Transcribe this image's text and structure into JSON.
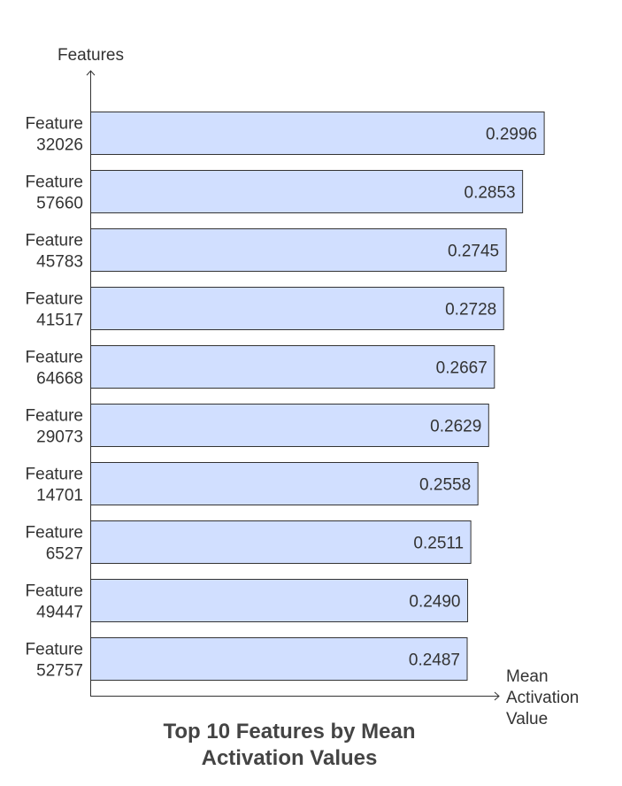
{
  "chart_data": {
    "type": "bar",
    "orientation": "horizontal",
    "title_lines": [
      "Top 10 Features by Mean",
      "Activation Values"
    ],
    "ylabel": "Features",
    "xlabel_lines": [
      "Mean",
      "Activation",
      "Value"
    ],
    "categories": [
      [
        "Feature",
        "32026"
      ],
      [
        "Feature",
        "57660"
      ],
      [
        "Feature",
        "45783"
      ],
      [
        "Feature",
        "41517"
      ],
      [
        "Feature",
        "64668"
      ],
      [
        "Feature",
        "29073"
      ],
      [
        "Feature",
        "14701"
      ],
      [
        "Feature",
        "6527"
      ],
      [
        "Feature",
        "49447"
      ],
      [
        "Feature",
        "52757"
      ]
    ],
    "values": [
      0.2996,
      0.2853,
      0.2745,
      0.2728,
      0.2667,
      0.2629,
      0.2558,
      0.2511,
      0.249,
      0.2487
    ],
    "data_labels": [
      "0.2996",
      "0.2853",
      "0.2745",
      "0.2728",
      "0.2667",
      "0.2629",
      "0.2558",
      "0.2511",
      "0.2490",
      "0.2487"
    ],
    "xlim": [
      0,
      0.32
    ],
    "grid": false,
    "legend": "none",
    "colors": {
      "bar_fill": "#d1dfff",
      "bar_stroke": "#333333",
      "axis": "#333333",
      "text": "#333333",
      "title": "#444444"
    }
  }
}
